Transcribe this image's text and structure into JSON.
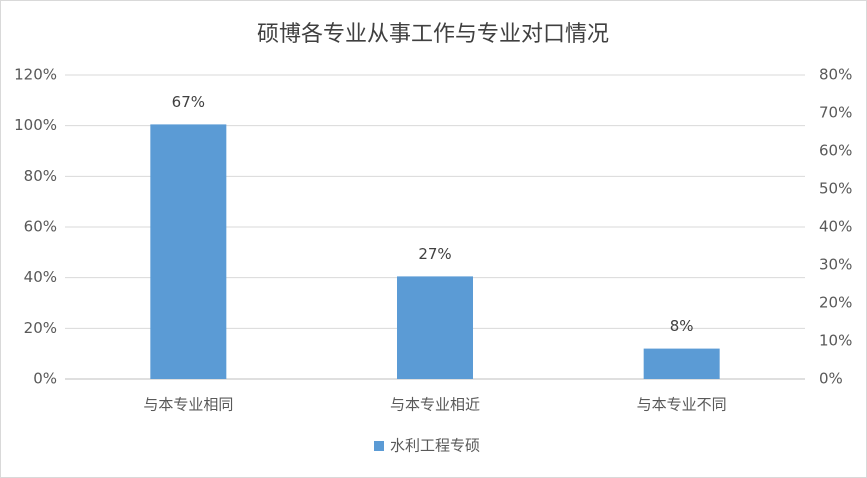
{
  "chart_data": {
    "type": "bar",
    "title": "硕博各专业从事工作与专业对口情况",
    "categories": [
      "与本专业相同",
      "与本专业相近",
      "与本专业不同"
    ],
    "series": [
      {
        "name": "水利工程专硕",
        "color": "#5b9bd5",
        "axis": "y2",
        "values": [
          67,
          27,
          8
        ],
        "value_labels": [
          "67%",
          "27%",
          "8%"
        ]
      }
    ],
    "ylim": [
      0,
      120
    ],
    "yticks": [
      {
        "value": 0,
        "label": "0%"
      },
      {
        "value": 20,
        "label": "20%"
      },
      {
        "value": 40,
        "label": "40%"
      },
      {
        "value": 60,
        "label": "60%"
      },
      {
        "value": 80,
        "label": "80%"
      },
      {
        "value": 100,
        "label": "100%"
      },
      {
        "value": 120,
        "label": "120%"
      }
    ],
    "y2lim": [
      0,
      80
    ],
    "y2ticks": [
      {
        "value": 0,
        "label": "0%"
      },
      {
        "value": 10,
        "label": "10%"
      },
      {
        "value": 20,
        "label": "20%"
      },
      {
        "value": 30,
        "label": "30%"
      },
      {
        "value": 40,
        "label": "40%"
      },
      {
        "value": 50,
        "label": "50%"
      },
      {
        "value": 60,
        "label": "60%"
      },
      {
        "value": 70,
        "label": "70%"
      },
      {
        "value": 80,
        "label": "80%"
      }
    ],
    "grid": true,
    "legend": "bottom"
  }
}
